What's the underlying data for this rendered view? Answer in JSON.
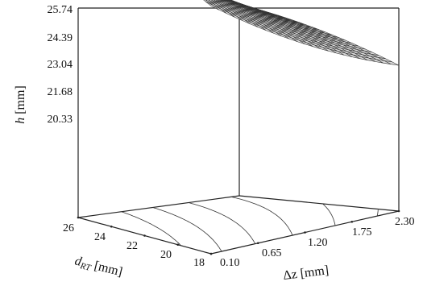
{
  "chart_data": {
    "type": "surface3d",
    "title": "",
    "z_axis": {
      "label_main": "h",
      "label_unit": " [mm]",
      "ticks": [
        "25.74",
        "24.39",
        "23.04",
        "21.68",
        "20.33"
      ],
      "range": [
        20.33,
        25.74
      ]
    },
    "x_axis": {
      "label": "Δz [mm]",
      "ticks": [
        "0.10",
        "0.65",
        "1.20",
        "1.75",
        "2.30"
      ],
      "range": [
        0.1,
        2.3
      ]
    },
    "y_axis": {
      "label_main": "d",
      "label_sub": "RT",
      "label_unit": " [mm]",
      "ticks": [
        "26",
        "24",
        "22",
        "20",
        "18"
      ],
      "range": [
        18,
        26
      ]
    },
    "surface": {
      "description_points": [
        {
          "dRT": 26,
          "dz": 0.1,
          "h": 25.74
        },
        {
          "dRT": 18,
          "dz": 0.1,
          "h": 24.4
        },
        {
          "dRT": 26,
          "dz": 2.3,
          "h": 22.9
        },
        {
          "dRT": 18,
          "dz": 2.3,
          "h": 21.68
        }
      ]
    }
  }
}
